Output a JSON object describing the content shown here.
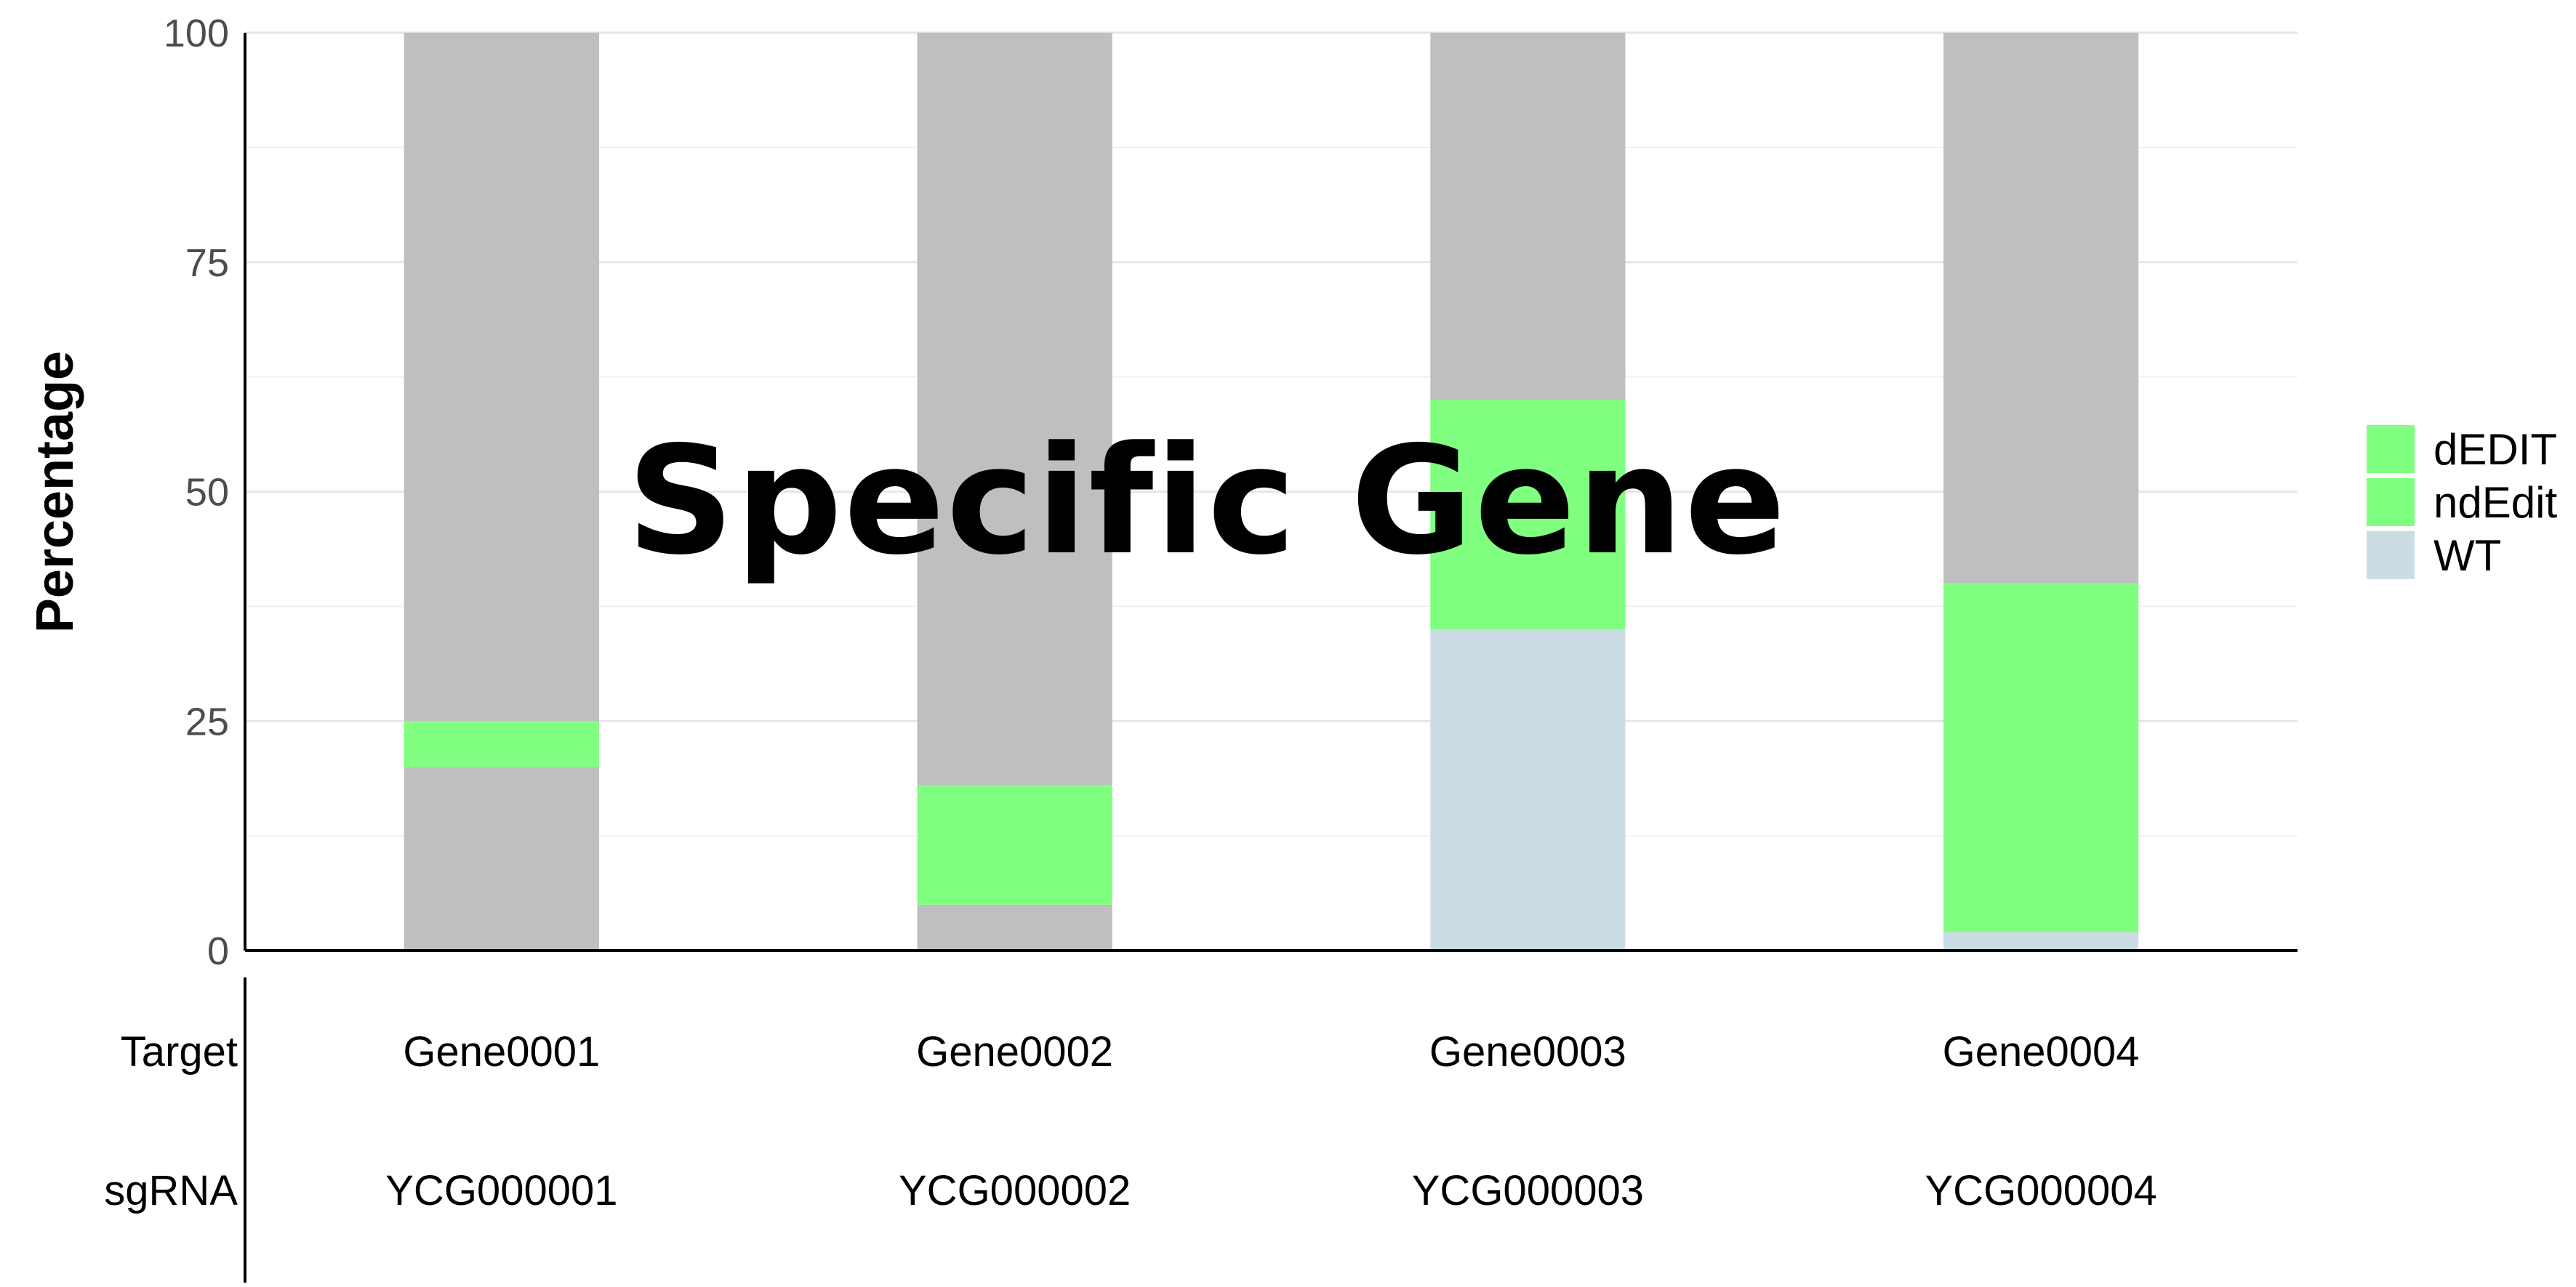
{
  "chart_data": {
    "type": "bar",
    "stacked": true,
    "title": "Specific Gene",
    "ylabel": "Percentage",
    "xlabel": "",
    "ylim": [
      0,
      100
    ],
    "yticks": [
      0,
      25,
      50,
      75,
      100
    ],
    "grid": true,
    "legend_position": "right",
    "categories": [
      "Gene0001",
      "Gene0002",
      "Gene0003",
      "Gene0004"
    ],
    "sgrna": [
      "YCG000001",
      "YCG000002",
      "YCG000003",
      "YCG000004"
    ],
    "table_row_labels": [
      "Target",
      "sgRNA"
    ],
    "series": [
      {
        "name": "WT",
        "color": "#ccdce5",
        "values": [
          0,
          0,
          35,
          2
        ]
      },
      {
        "name": "dEDIT",
        "color": "#80ff80",
        "values": [
          0,
          0,
          0,
          0
        ]
      },
      {
        "name": "ndEdit",
        "color": "#80ff80",
        "values": [
          5,
          13,
          25,
          38
        ]
      }
    ],
    "stack_segments": [
      [
        {
          "series": "other",
          "from": 0,
          "to": 20,
          "color": "#bfbfbf"
        },
        {
          "series": "ndEdit",
          "from": 20,
          "to": 25,
          "color": "#80ff80"
        },
        {
          "series": "other",
          "from": 25,
          "to": 100,
          "color": "#bfbfbf"
        }
      ],
      [
        {
          "series": "other",
          "from": 0,
          "to": 5,
          "color": "#bfbfbf"
        },
        {
          "series": "ndEdit",
          "from": 5,
          "to": 18,
          "color": "#80ff80"
        },
        {
          "series": "other",
          "from": 18,
          "to": 100,
          "color": "#bfbfbf"
        }
      ],
      [
        {
          "series": "WT",
          "from": 0,
          "to": 35,
          "color": "#ccdce5"
        },
        {
          "series": "ndEdit",
          "from": 35,
          "to": 60,
          "color": "#80ff80"
        },
        {
          "series": "other",
          "from": 60,
          "to": 100,
          "color": "#bfbfbf"
        }
      ],
      [
        {
          "series": "WT",
          "from": 0,
          "to": 2,
          "color": "#ccdce5"
        },
        {
          "series": "ndEdit",
          "from": 2,
          "to": 40,
          "color": "#80ff80"
        },
        {
          "series": "other",
          "from": 40,
          "to": 100,
          "color": "#bfbfbf"
        }
      ]
    ],
    "legend": [
      {
        "label": "dEDIT",
        "color": "#80ff80"
      },
      {
        "label": "ndEdit",
        "color": "#80ff80"
      },
      {
        "label": "WT",
        "color": "#ccdce5"
      }
    ]
  }
}
